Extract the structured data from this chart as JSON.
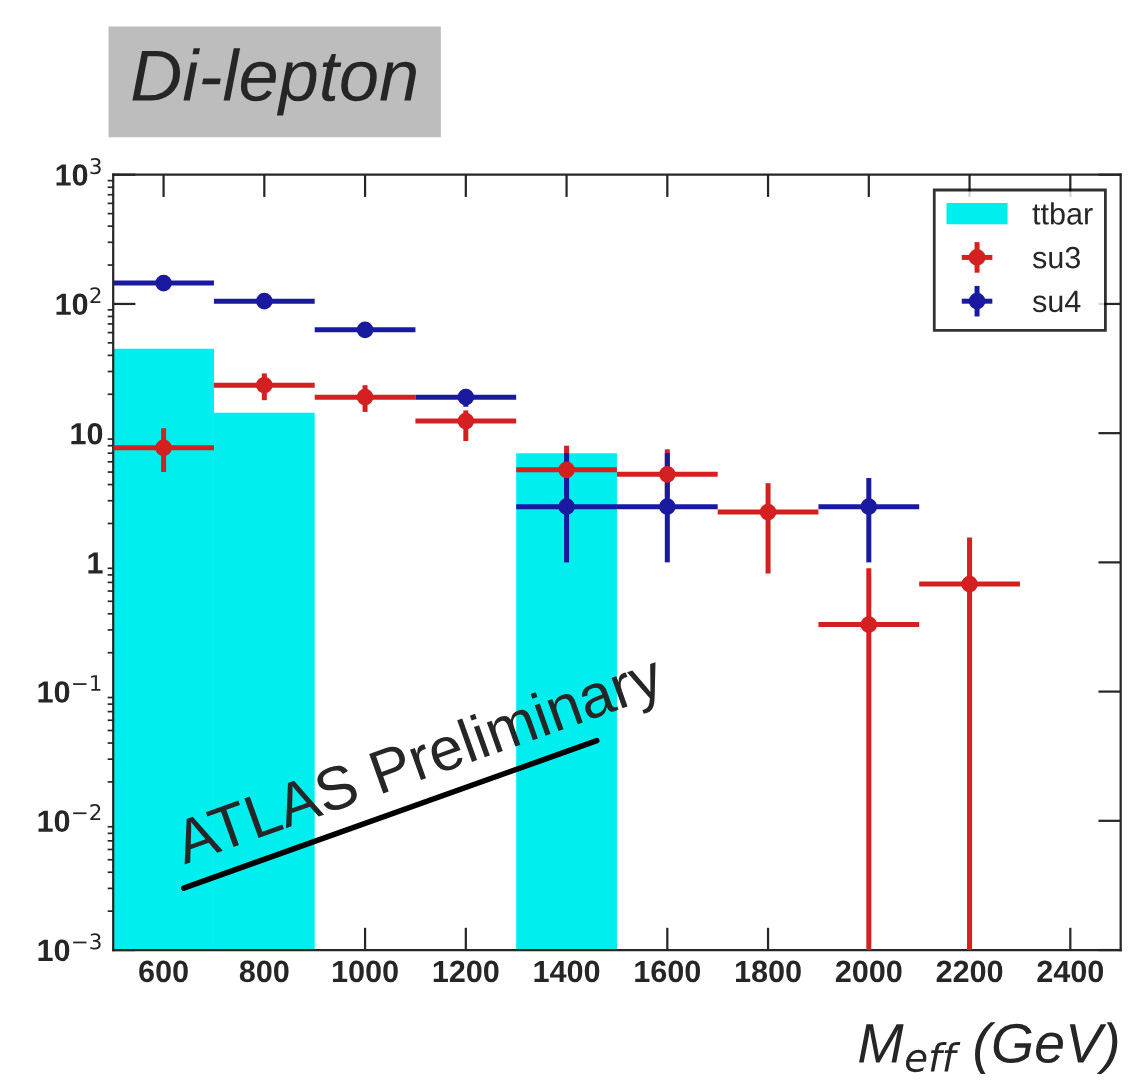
{
  "chart_data": {
    "type": "histogram",
    "title": "Di-lepton",
    "xlabel": "M$_{eff}$ (GeV)",
    "annotations": [
      "ATLAS Preliminary"
    ],
    "series": [
      {
        "name": "ttbar",
        "color": "#00eeee",
        "bins": [
          500,
          700,
          900,
          1100,
          1300,
          1500
        ],
        "values": [
          45,
          14.4,
          null,
          null,
          7.0
        ]
      },
      {
        "name": "su3",
        "type": "scatter",
        "color": "#d42020",
        "x": [
          600,
          800,
          1000,
          1200,
          1400,
          1600,
          1800,
          2000,
          2200
        ],
        "values": [
          7.7,
          23.5,
          19,
          12.4,
          5.2,
          4.8,
          2.45,
          0.33,
          0.68
        ],
        "errors": [
          [
            5.0,
            10.9
          ],
          [
            18,
            29
          ],
          [
            14.6,
            23.5
          ],
          [
            8.7,
            15
          ],
          [
            3.5,
            8
          ],
          [
            3.2,
            7.5
          ],
          [
            0.82,
            4.1
          ],
          [
            0.001,
            0.9
          ],
          [
            0.001,
            1.56
          ]
        ],
        "xerrors": [
          100,
          100,
          100,
          100,
          100,
          100,
          100,
          100,
          100
        ]
      },
      {
        "name": "su4",
        "type": "scatter",
        "color": "#1a1aa0",
        "x": [
          600,
          800,
          1000,
          1200,
          1400,
          1600,
          2000
        ],
        "values": [
          145,
          105,
          63,
          19,
          2.7,
          2.7,
          2.7
        ],
        "errors": [
          [
            130,
            160
          ],
          [
            95,
            115
          ],
          [
            57,
            69
          ],
          [
            16,
            22
          ],
          [
            1.0,
            7
          ],
          [
            1.0,
            7
          ],
          [
            1.0,
            4.5
          ]
        ],
        "xerrors": [
          100,
          100,
          100,
          100,
          100,
          100,
          100
        ]
      }
    ],
    "xlim": [
      500,
      2500
    ],
    "ylim": [
      0.001,
      1000
    ],
    "log": "y",
    "xticks": [
      600,
      800,
      1000,
      1200,
      1400,
      1600,
      1800,
      2000,
      2200,
      2400
    ],
    "yticks": [
      {
        "value": 0.001,
        "label": "10$^{−3}$"
      },
      {
        "value": 0.01,
        "label": "10$^{−2}$"
      },
      {
        "value": 0.1,
        "label": "10$^{−1}$"
      },
      1,
      10,
      {
        "value": 100,
        "label": "10$^{2}$"
      },
      {
        "value": 1000,
        "label": "10$^{3}$"
      }
    ],
    "legend": "top right",
    "grid": false,
    "marker": "circle"
  }
}
